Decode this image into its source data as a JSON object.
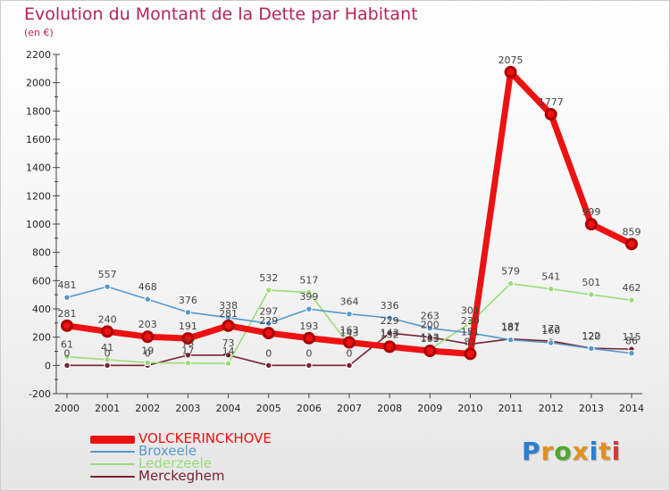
{
  "title": "Evolution du Montant de la Dette par Habitant",
  "unit": "(en €)",
  "brand": {
    "letters": [
      "P",
      "r",
      "o",
      "x",
      "i",
      "t",
      "i"
    ],
    "colors": [
      "#2b7fd0",
      "#e4901f",
      "#4ea82c",
      "#e4901f",
      "#2b7fd0",
      "#e4901f",
      "#d03a3a"
    ]
  },
  "colors": {
    "axis": "#444444",
    "VOLCKERINCKHOVE": "#ee1111",
    "Broxeele": "#5599cc",
    "Lederzeele": "#99dd77",
    "Merckeghem": "#772233"
  },
  "chart_data": {
    "type": "line",
    "title": "Evolution du Montant de la Dette par Habitant",
    "ylabel": "(en €)",
    "x": [
      "2000",
      "2001",
      "2002",
      "2003",
      "2004",
      "2005",
      "2006",
      "2007",
      "2008",
      "2009",
      "2010",
      "2011",
      "2012",
      "2013",
      "2014"
    ],
    "ylim": [
      -200,
      2200
    ],
    "yticks": [
      -200,
      0,
      200,
      400,
      600,
      800,
      1000,
      1200,
      1400,
      1600,
      1800,
      2000,
      2200
    ],
    "legend_position": "bottom-left",
    "series": [
      {
        "name": "VOLCKERINCKHOVE",
        "values": [
          281,
          240,
          203,
          191,
          281,
          229,
          193,
          163,
          132,
          103,
          82,
          2075,
          1777,
          999,
          859
        ],
        "labels": [
          "281",
          "240",
          "203",
          "191",
          "281",
          "229",
          "193",
          "163",
          "132",
          "103",
          "82",
          "2075",
          "1777",
          "999",
          "859"
        ]
      },
      {
        "name": "Broxeele",
        "values": [
          481,
          557,
          468,
          376,
          338,
          297,
          399,
          364,
          336,
          263,
          230,
          181,
          160,
          120,
          86
        ],
        "labels": [
          "481",
          "557",
          "468",
          "376",
          "338",
          "297",
          "399",
          "364",
          "336",
          "263",
          "230",
          "181",
          "160",
          "120",
          "86"
        ]
      },
      {
        "name": "Lederzeele",
        "values": [
          61,
          41,
          19,
          17,
          14,
          532,
          517,
          143,
          143,
          113,
          301,
          579,
          541,
          501,
          462
        ],
        "labels": [
          "61",
          "41",
          "19",
          "17",
          "14",
          "532",
          "517",
          "143",
          "143",
          "113",
          "301",
          "579",
          "541",
          "501",
          "462"
        ]
      },
      {
        "name": "Merckeghem",
        "values": [
          0,
          0,
          0,
          73,
          73,
          0,
          0,
          0,
          229,
          200,
          151,
          187,
          172,
          122,
          115
        ],
        "labels": [
          "0",
          "0",
          "0",
          "73",
          "73",
          "0",
          "0",
          "0",
          "229",
          "200",
          "151",
          "187",
          "172",
          "122",
          "115"
        ]
      }
    ]
  }
}
